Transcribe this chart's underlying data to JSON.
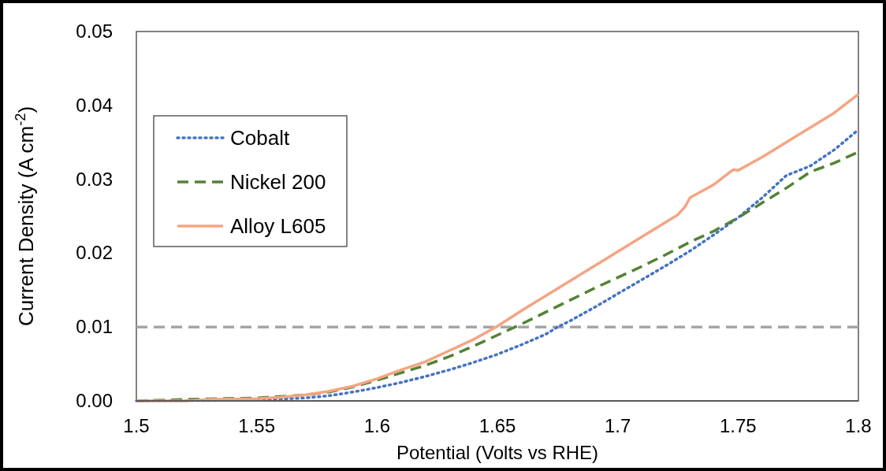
{
  "chart_data": {
    "type": "line",
    "xlabel": "Potential (Volts vs RHE)",
    "ylabel": "Current Density (A cm$^{-2}$)",
    "xlim": [
      1.5,
      1.8
    ],
    "xticks": [
      1.5,
      1.55,
      1.6,
      1.65,
      1.7,
      1.75,
      1.8
    ],
    "ylim": [
      0,
      0.05
    ],
    "yticks": [
      {
        "value": 0,
        "label": "0.00"
      },
      {
        "value": 0.01,
        "label": "0.01"
      },
      {
        "value": 0.02,
        "label": "0.02"
      },
      {
        "value": 0.03,
        "label": "0.03"
      },
      {
        "value": 0.04,
        "label": "0.04"
      },
      {
        "value": 0.05,
        "label": "0.05"
      }
    ],
    "grid": false,
    "legend": "top left",
    "ref_lines": [
      {
        "axis": "y",
        "value": 0.01,
        "color": "#a5a5a5",
        "line_style": "dashed"
      }
    ],
    "series": [
      {
        "name": "Cobalt",
        "color": "#4472c4",
        "line_style": "dotted",
        "x": [
          1.5,
          1.55,
          1.57,
          1.58,
          1.59,
          1.6,
          1.61,
          1.62,
          1.63,
          1.64,
          1.65,
          1.66,
          1.67,
          1.675,
          1.68,
          1.69,
          1.7,
          1.71,
          1.72,
          1.73,
          1.74,
          1.75,
          1.76,
          1.77,
          1.78,
          1.79,
          1.8
        ],
        "values": [
          0,
          0.0001,
          0.0004,
          0.0007,
          0.0012,
          0.0018,
          0.0025,
          0.0033,
          0.0042,
          0.0052,
          0.0063,
          0.0076,
          0.009,
          0.01,
          0.0108,
          0.0126,
          0.0145,
          0.0164,
          0.0183,
          0.0203,
          0.0225,
          0.0248,
          0.0275,
          0.0305,
          0.0318,
          0.034,
          0.0367
        ]
      },
      {
        "name": "Nickel 200",
        "color": "#548235",
        "line_style": "dashed",
        "x": [
          1.5,
          1.52,
          1.55,
          1.57,
          1.58,
          1.59,
          1.6,
          1.61,
          1.62,
          1.63,
          1.64,
          1.65,
          1.66,
          1.67,
          1.68,
          1.69,
          1.7,
          1.71,
          1.72,
          1.73,
          1.74,
          1.75,
          1.76,
          1.77,
          1.78,
          1.79,
          1.8
        ],
        "values": [
          0,
          0.0002,
          0.0004,
          0.0008,
          0.0012,
          0.0019,
          0.0028,
          0.0038,
          0.0048,
          0.006,
          0.0074,
          0.0089,
          0.0104,
          0.012,
          0.0136,
          0.0152,
          0.0167,
          0.0182,
          0.0198,
          0.0215,
          0.023,
          0.0248,
          0.0268,
          0.0288,
          0.031,
          0.0322,
          0.0337
        ]
      },
      {
        "name": "Alloy L605",
        "color": "#f4a582",
        "line_style": "solid",
        "x": [
          1.5,
          1.52,
          1.53,
          1.55,
          1.56,
          1.57,
          1.58,
          1.59,
          1.6,
          1.61,
          1.62,
          1.63,
          1.64,
          1.65,
          1.66,
          1.67,
          1.68,
          1.69,
          1.7,
          1.71,
          1.72,
          1.725,
          1.728,
          1.73,
          1.74,
          1.748,
          1.75,
          1.76,
          1.77,
          1.78,
          1.79,
          1.8
        ],
        "values": [
          0,
          0,
          0.0002,
          0.0003,
          0.0005,
          0.0008,
          0.0013,
          0.002,
          0.003,
          0.0042,
          0.0053,
          0.0068,
          0.0083,
          0.0101,
          0.0122,
          0.0142,
          0.0162,
          0.0182,
          0.0202,
          0.0222,
          0.0242,
          0.0252,
          0.0263,
          0.0275,
          0.0293,
          0.0313,
          0.0312,
          0.033,
          0.035,
          0.037,
          0.039,
          0.0415
        ]
      }
    ]
  }
}
